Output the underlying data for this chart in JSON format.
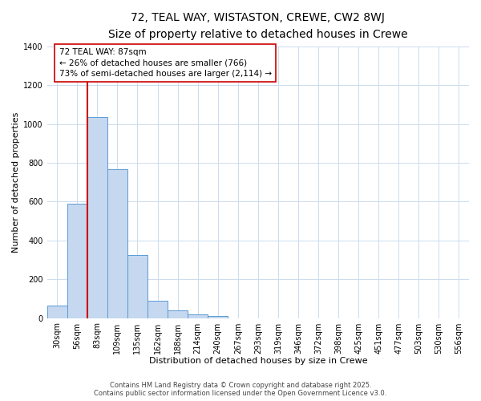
{
  "title": "72, TEAL WAY, WISTASTON, CREWE, CW2 8WJ",
  "subtitle": "Size of property relative to detached houses in Crewe",
  "xlabel": "Distribution of detached houses by size in Crewe",
  "ylabel": "Number of detached properties",
  "bar_color": "#c5d8ef",
  "bar_edge_color": "#5b9bd5",
  "bin_labels": [
    "30sqm",
    "56sqm",
    "83sqm",
    "109sqm",
    "135sqm",
    "162sqm",
    "188sqm",
    "214sqm",
    "240sqm",
    "267sqm",
    "293sqm",
    "319sqm",
    "346sqm",
    "372sqm",
    "398sqm",
    "425sqm",
    "451sqm",
    "477sqm",
    "503sqm",
    "530sqm",
    "556sqm"
  ],
  "bar_values": [
    65,
    590,
    1035,
    765,
    325,
    90,
    40,
    20,
    10,
    0,
    0,
    0,
    0,
    0,
    0,
    0,
    0,
    0,
    0,
    0,
    0
  ],
  "ylim": [
    0,
    1400
  ],
  "yticks": [
    0,
    200,
    400,
    600,
    800,
    1000,
    1200,
    1400
  ],
  "property_label": "72 TEAL WAY: 87sqm",
  "annotation_line1": "← 26% of detached houses are smaller (766)",
  "annotation_line2": "73% of semi-detached houses are larger (2,114) →",
  "vline_bin_index": 2,
  "vline_color": "#cc0000",
  "annotation_box_color": "#ffffff",
  "annotation_box_edge": "#cc0000",
  "footer1": "Contains HM Land Registry data © Crown copyright and database right 2025.",
  "footer2": "Contains public sector information licensed under the Open Government Licence v3.0.",
  "background_color": "#ffffff",
  "grid_color": "#ccdcee",
  "title_fontsize": 10,
  "subtitle_fontsize": 9,
  "axis_label_fontsize": 8,
  "tick_fontsize": 7,
  "annotation_fontsize": 7.5,
  "footer_fontsize": 6
}
